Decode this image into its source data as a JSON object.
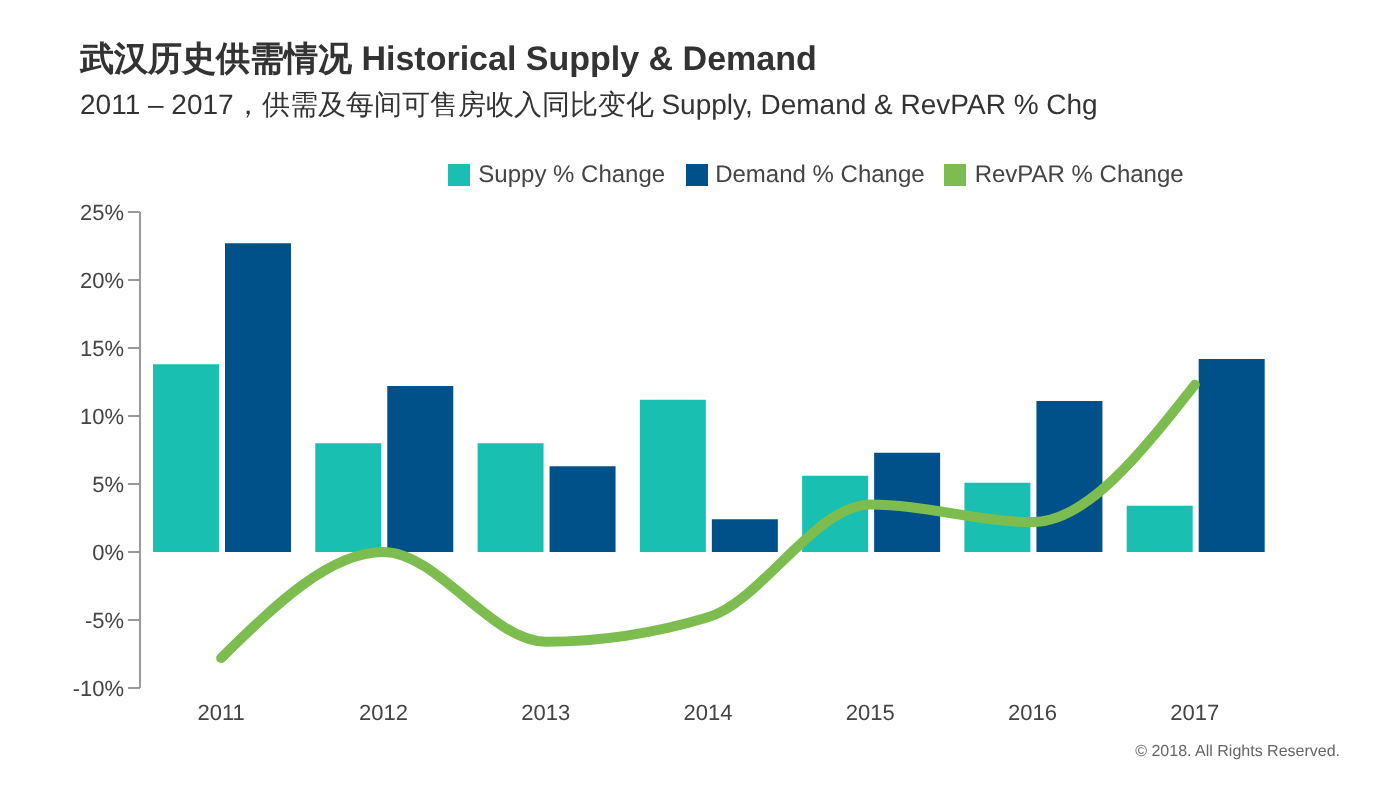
{
  "chart_data": {
    "type": "bar",
    "title": "武汉历史供需情况 Historical Supply & Demand",
    "subtitle": "2011 – 2017，供需及每间可售房收入同比变化 Supply, Demand & RevPAR % Chg",
    "categories": [
      "2011",
      "2012",
      "2013",
      "2014",
      "2015",
      "2016",
      "2017"
    ],
    "series": [
      {
        "name": "Suppy % Change",
        "color": "#19bfb0",
        "values": [
          13.8,
          8.0,
          8.0,
          11.2,
          5.6,
          5.1,
          3.4
        ]
      },
      {
        "name": "Demand % Change",
        "color": "#005189",
        "values": [
          22.7,
          12.2,
          6.3,
          2.4,
          7.3,
          11.1,
          14.2
        ]
      },
      {
        "name": "RevPAR % Change",
        "type": "line",
        "color": "#7dbd4f",
        "values": [
          -7.8,
          0.0,
          -6.6,
          -4.8,
          3.5,
          2.2,
          12.3
        ]
      }
    ],
    "ylim": [
      -10,
      25
    ],
    "yticks": [
      {
        "value": -10,
        "label": "-10%"
      },
      {
        "value": -5,
        "label": "-5%"
      },
      {
        "value": 0,
        "label": "0%"
      },
      {
        "value": 5,
        "label": "5%"
      },
      {
        "value": 10,
        "label": "10%"
      },
      {
        "value": 15,
        "label": "15%"
      },
      {
        "value": 20,
        "label": "20%"
      },
      {
        "value": 25,
        "label": "25%"
      }
    ],
    "legend": "top",
    "grid": false,
    "marker": "none",
    "annotations": [
      "© 2018. All Rights Reserved."
    ]
  }
}
